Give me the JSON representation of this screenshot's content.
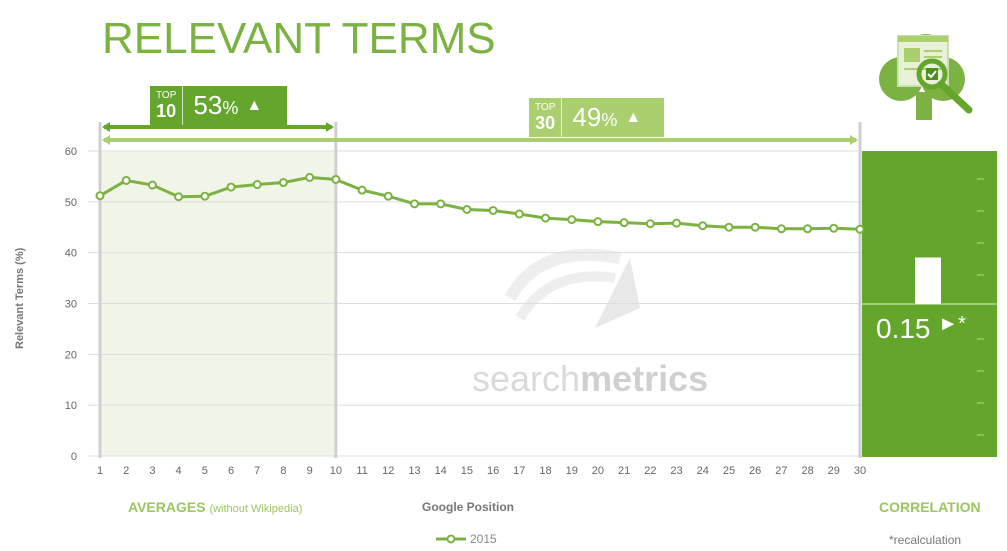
{
  "title": "RELEVANT TERMS",
  "badges": {
    "top10": {
      "top": "TOP",
      "num": "10",
      "pct": "53",
      "pct_sign": "%",
      "arrow": "▲"
    },
    "top30": {
      "top": "TOP",
      "num": "30",
      "pct": "49",
      "pct_sign": "%",
      "arrow": "▲"
    }
  },
  "labels": {
    "averages": "AVERAGES",
    "averages_sub": "(without Wikipedia)",
    "xaxis": "Google Position",
    "correlation": "CORRELATION",
    "yaxis": "Relevant Terms (%)",
    "footnote": "*recalculation",
    "watermark_light": "search",
    "watermark_bold": "metrics"
  },
  "correlation": {
    "value": "0.15",
    "marker": "►*",
    "bar_value": 0.15
  },
  "colors": {
    "accent": "#7bb241",
    "dark": "#64a62b",
    "light": "#a9cf6f",
    "shade": "#f1f5e8"
  },
  "chart_data": {
    "type": "line",
    "x": [
      1,
      2,
      3,
      4,
      5,
      6,
      7,
      8,
      9,
      10,
      11,
      12,
      13,
      14,
      15,
      16,
      17,
      18,
      19,
      20,
      21,
      22,
      23,
      24,
      25,
      26,
      27,
      28,
      29,
      30
    ],
    "series": [
      {
        "name": "2015",
        "color": "#7bb241",
        "values": [
          51.2,
          54.2,
          53.3,
          51.0,
          51.1,
          52.9,
          53.4,
          53.8,
          54.8,
          54.4,
          52.3,
          51.1,
          49.6,
          49.6,
          48.5,
          48.3,
          47.6,
          46.8,
          46.5,
          46.1,
          45.9,
          45.7,
          45.8,
          45.3,
          45.0,
          45.0,
          44.7,
          44.7,
          44.8,
          44.6
        ]
      }
    ],
    "yticks": [
      0,
      10,
      20,
      30,
      40,
      50,
      60
    ],
    "xticks": [
      "1",
      "2",
      "3",
      "4",
      "5",
      "6",
      "7",
      "8",
      "9",
      "10",
      "11",
      "12",
      "13",
      "14",
      "15",
      "16",
      "17",
      "18",
      "19",
      "20",
      "21",
      "22",
      "23",
      "24",
      "25",
      "26",
      "27",
      "28",
      "29",
      "30"
    ],
    "ylim": [
      0,
      60
    ],
    "xlabel": "Google Position",
    "ylabel": "Relevant Terms (%)",
    "grid": true,
    "legend": "bottom"
  }
}
